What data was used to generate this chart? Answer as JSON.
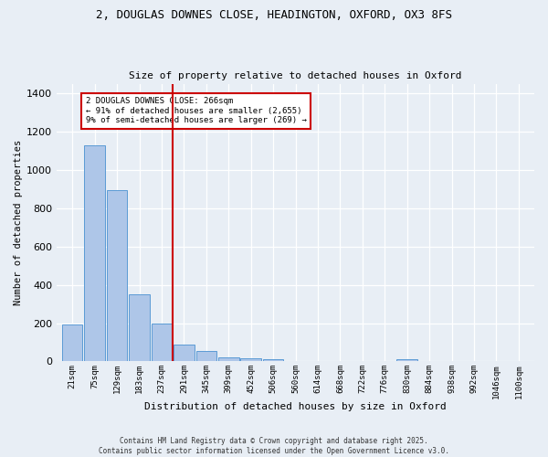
{
  "title_line1": "2, DOUGLAS DOWNES CLOSE, HEADINGTON, OXFORD, OX3 8FS",
  "title_line2": "Size of property relative to detached houses in Oxford",
  "xlabel": "Distribution of detached houses by size in Oxford",
  "ylabel": "Number of detached properties",
  "bin_labels": [
    "21sqm",
    "75sqm",
    "129sqm",
    "183sqm",
    "237sqm",
    "291sqm",
    "345sqm",
    "399sqm",
    "452sqm",
    "506sqm",
    "560sqm",
    "614sqm",
    "668sqm",
    "722sqm",
    "776sqm",
    "830sqm",
    "884sqm",
    "938sqm",
    "992sqm",
    "1046sqm",
    "1100sqm"
  ],
  "bar_values": [
    193,
    1130,
    893,
    350,
    197,
    90,
    55,
    20,
    18,
    13,
    0,
    0,
    0,
    0,
    0,
    13,
    0,
    0,
    0,
    0,
    0
  ],
  "bar_color": "#aec6e8",
  "bar_edge_color": "#5b9bd5",
  "vline_x_index": 4.5,
  "vline_color": "#cc0000",
  "annotation_text": "2 DOUGLAS DOWNES CLOSE: 266sqm\n← 91% of detached houses are smaller (2,655)\n9% of semi-detached houses are larger (269) →",
  "annotation_box_color": "white",
  "annotation_box_edge_color": "#cc0000",
  "ylim": [
    0,
    1450
  ],
  "yticks": [
    0,
    200,
    400,
    600,
    800,
    1000,
    1200,
    1400
  ],
  "bg_color": "#e8eef5",
  "grid_color": "#ffffff",
  "footer_line1": "Contains HM Land Registry data © Crown copyright and database right 2025.",
  "footer_line2": "Contains public sector information licensed under the Open Government Licence v3.0."
}
